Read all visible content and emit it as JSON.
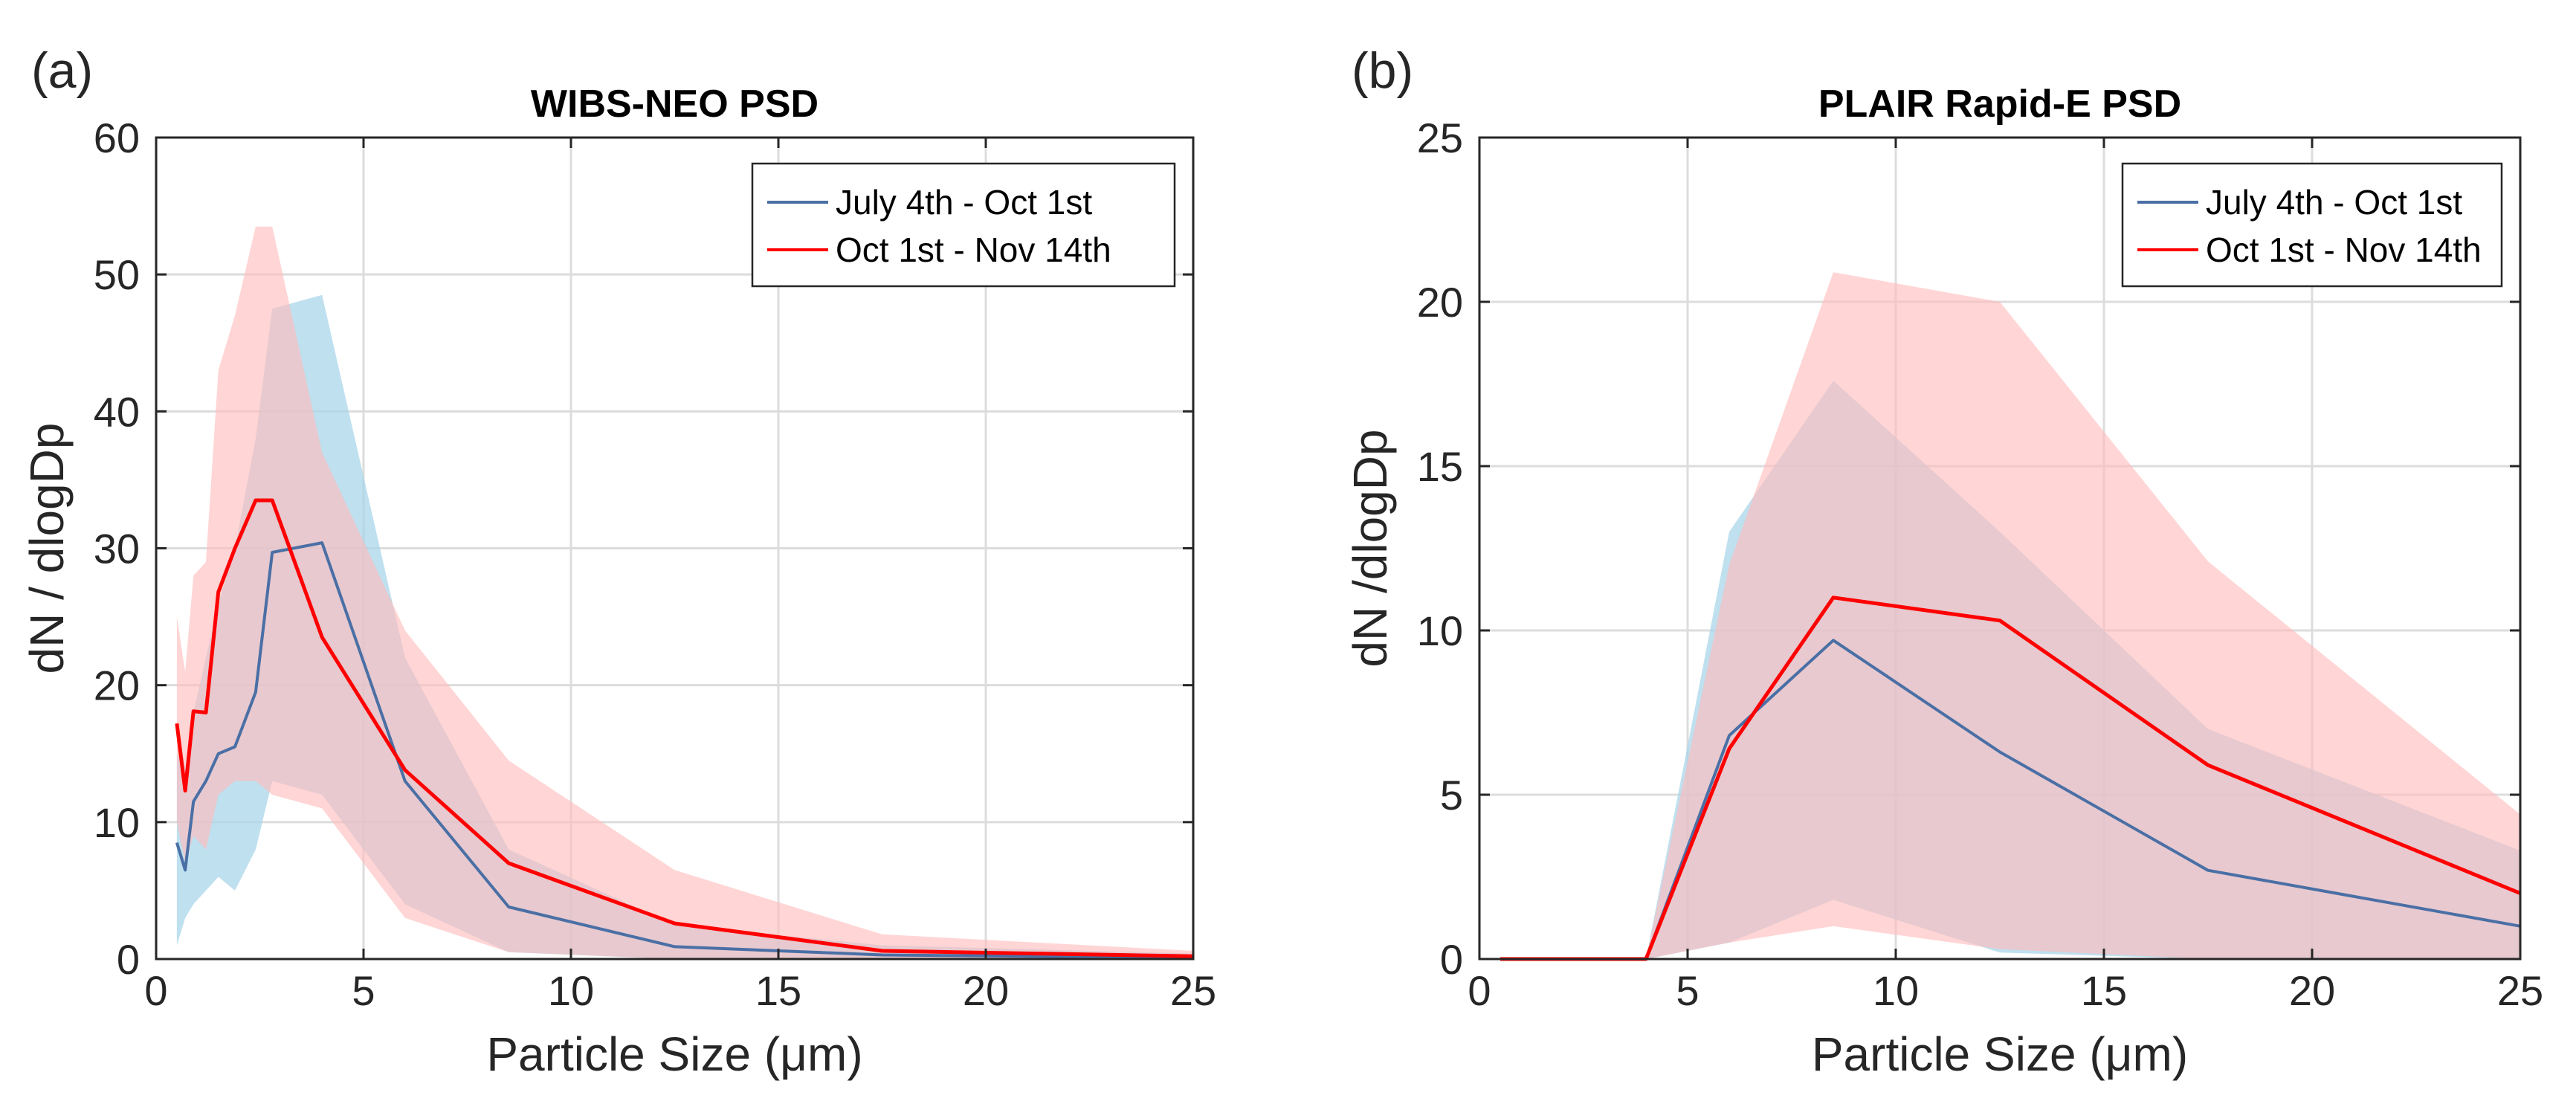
{
  "chart_data": [
    {
      "type": "line",
      "panel_label": "(a)",
      "title": "WIBS-NEO PSD",
      "xlabel": "Particle Size (μm)",
      "ylabel": "dN / dlogDp",
      "xlim": [
        0,
        25
      ],
      "ylim": [
        0,
        60
      ],
      "xticks": [
        0,
        5,
        10,
        15,
        20,
        25
      ],
      "yticks": [
        0,
        10,
        20,
        30,
        40,
        50,
        60
      ],
      "grid": true,
      "legend_position": "top-right",
      "series": [
        {
          "name": "July 4th - Oct 1st",
          "color": "#4a6fa5",
          "band_color": "#a9d6ea",
          "x": [
            0.5,
            0.7,
            0.9,
            1.2,
            1.5,
            1.9,
            2.4,
            2.8,
            4.0,
            6.0,
            8.5,
            12.5,
            17.5,
            25
          ],
          "y": [
            8.5,
            6.5,
            11.5,
            13.0,
            15.0,
            15.5,
            19.5,
            29.7,
            30.4,
            13.0,
            3.8,
            0.9,
            0.3,
            0.1
          ],
          "upper": [
            15,
            14,
            18,
            22,
            26,
            30,
            38,
            47.5,
            48.5,
            22,
            8,
            2.5,
            1,
            0.4
          ],
          "lower": [
            1,
            3,
            4,
            5,
            6,
            5,
            8,
            13,
            12,
            4,
            0.5,
            0,
            0,
            0
          ]
        },
        {
          "name": "Oct 1st - Nov 14th",
          "color": "#ff0000",
          "band_color": "#ffbcbc",
          "x": [
            0.5,
            0.7,
            0.9,
            1.2,
            1.5,
            1.9,
            2.4,
            2.8,
            4.0,
            6.0,
            8.5,
            12.5,
            17.5,
            25
          ],
          "y": [
            17.2,
            12.3,
            18.1,
            18.0,
            26.8,
            30.0,
            33.5,
            33.5,
            23.5,
            13.8,
            7.0,
            2.6,
            0.6,
            0.2
          ],
          "upper": [
            25,
            21,
            28,
            29,
            43,
            47,
            53.5,
            53.5,
            37,
            24,
            14.5,
            6.5,
            1.8,
            0.6
          ],
          "lower": [
            10,
            7,
            9,
            8,
            12,
            13,
            13,
            12,
            11,
            3,
            0.5,
            0,
            0,
            0
          ]
        }
      ]
    },
    {
      "type": "line",
      "panel_label": "(b)",
      "title": "PLAIR Rapid-E PSD",
      "xlabel": "Particle Size (μm)",
      "ylabel": "dN /dlogDp",
      "xlim": [
        0,
        25
      ],
      "ylim": [
        0,
        25
      ],
      "xticks": [
        0,
        5,
        10,
        15,
        20,
        25
      ],
      "yticks": [
        0,
        5,
        10,
        15,
        20,
        25
      ],
      "grid": true,
      "legend_position": "top-right",
      "series": [
        {
          "name": "July 4th - Oct 1st",
          "color": "#4a6fa5",
          "band_color": "#a9d6ea",
          "x": [
            0.5,
            2.5,
            4.0,
            6.0,
            8.5,
            12.5,
            17.5,
            25
          ],
          "y": [
            0,
            0,
            0,
            6.8,
            9.7,
            6.3,
            2.7,
            1.0
          ],
          "upper": [
            0,
            0,
            0,
            13.0,
            17.6,
            13.0,
            7.0,
            3.3
          ],
          "lower": [
            0,
            0,
            0,
            0.5,
            1.8,
            0.2,
            0,
            0
          ]
        },
        {
          "name": "Oct 1st - Nov 14th",
          "color": "#ff0000",
          "band_color": "#ffbcbc",
          "x": [
            0.5,
            2.5,
            4.0,
            6.0,
            8.5,
            12.5,
            17.5,
            25
          ],
          "y": [
            0,
            0,
            0,
            6.4,
            11.0,
            10.3,
            5.9,
            2.0
          ],
          "upper": [
            0,
            0,
            0,
            12.0,
            20.9,
            20.0,
            12.1,
            4.4
          ],
          "lower": [
            0,
            0,
            0,
            0.5,
            1.0,
            0.3,
            0,
            0
          ]
        }
      ]
    }
  ]
}
